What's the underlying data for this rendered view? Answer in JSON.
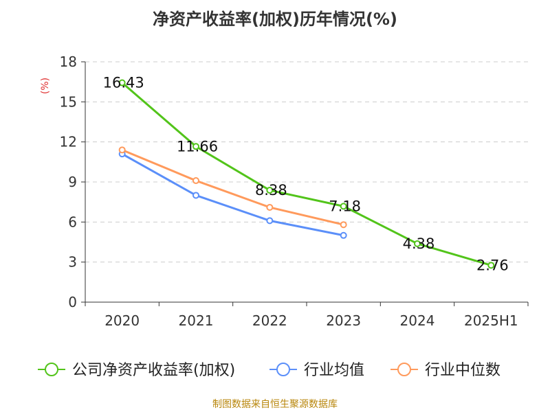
{
  "chart_data": {
    "type": "line",
    "title": "净资产收益率(加权)历年情况(%)",
    "ylabel": "(%)",
    "xlabel": "",
    "categories": [
      "2020",
      "2021",
      "2022",
      "2023",
      "2024",
      "2025H1"
    ],
    "ylim": [
      0,
      18
    ],
    "yticks": [
      0,
      3,
      6,
      9,
      12,
      15,
      18
    ],
    "grid": true,
    "legend_position": "bottom",
    "series": [
      {
        "name": "公司净资产收益率(加权)",
        "color": "#52c41a",
        "values": [
          16.43,
          11.66,
          8.38,
          7.18,
          4.38,
          2.76
        ],
        "labels": [
          "16.43",
          "11.66",
          "8.38",
          "7.18",
          "4.38",
          "2.76"
        ]
      },
      {
        "name": "行业均值",
        "color": "#5b8ff9",
        "values": [
          11.1,
          8.0,
          6.1,
          5.0,
          null,
          null
        ]
      },
      {
        "name": "行业中位数",
        "color": "#ff9a5c",
        "values": [
          11.4,
          9.1,
          7.1,
          5.8,
          null,
          null
        ]
      }
    ]
  },
  "footer": {
    "source": "制图数据来自恒生聚源数据库"
  },
  "colors": {
    "axis": "#333333",
    "grid": "#cccccc",
    "ylabel": "#e03030",
    "footer": "#b8860b"
  }
}
